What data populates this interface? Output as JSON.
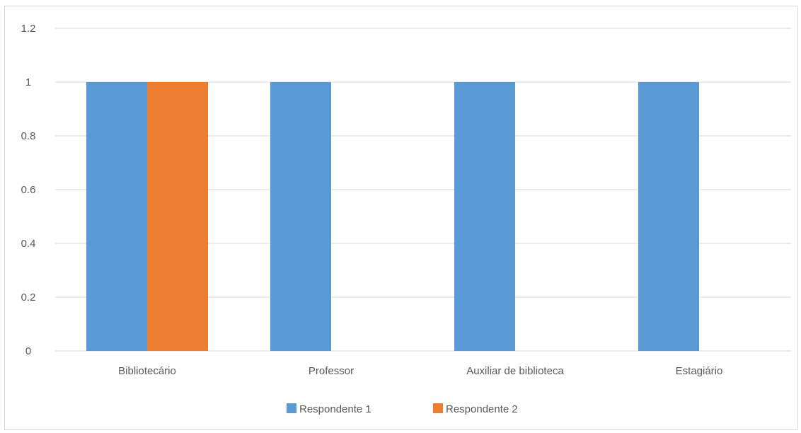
{
  "chart_data": {
    "type": "bar",
    "categories": [
      "Bibliotecário",
      "Professor",
      "Auxiliar de biblioteca",
      "Estagiário"
    ],
    "series": [
      {
        "name": "Respondente 1",
        "values": [
          1,
          1,
          1,
          1
        ],
        "color": "#5b9bd5"
      },
      {
        "name": "Respondente 2",
        "values": [
          1,
          0,
          0,
          0
        ],
        "color": "#ed7d31"
      }
    ],
    "ylim": [
      0,
      1.2
    ],
    "yticks": [
      "0",
      "0.2",
      "0.4",
      "0.6",
      "0.8",
      "1",
      "1.2"
    ],
    "grid": true,
    "legend_position": "bottom"
  }
}
